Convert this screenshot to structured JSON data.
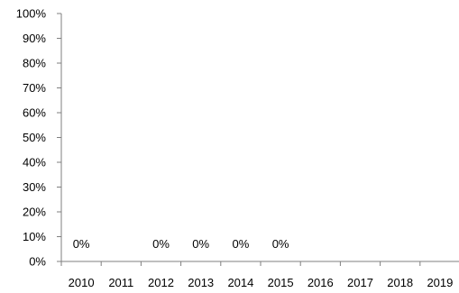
{
  "chart_data": {
    "type": "bar",
    "categories": [
      "2010",
      "2011",
      "2012",
      "2013",
      "2014",
      "2015",
      "2016",
      "2017",
      "2018",
      "2019"
    ],
    "values": [
      0,
      null,
      0,
      0,
      0,
      0,
      null,
      null,
      null,
      null
    ],
    "data_labels": [
      "0%",
      "",
      "0%",
      "0%",
      "0%",
      "0%",
      "",
      "",
      "",
      ""
    ],
    "yticks": [
      "0%",
      "10%",
      "20%",
      "30%",
      "40%",
      "50%",
      "60%",
      "70%",
      "80%",
      "90%",
      "100%"
    ],
    "ylim": [
      0,
      100
    ],
    "title": "",
    "xlabel": "",
    "ylabel": "",
    "grid": false,
    "legend": "none",
    "colors": {
      "axis": "#7f7f7f",
      "text": "#000000"
    }
  }
}
